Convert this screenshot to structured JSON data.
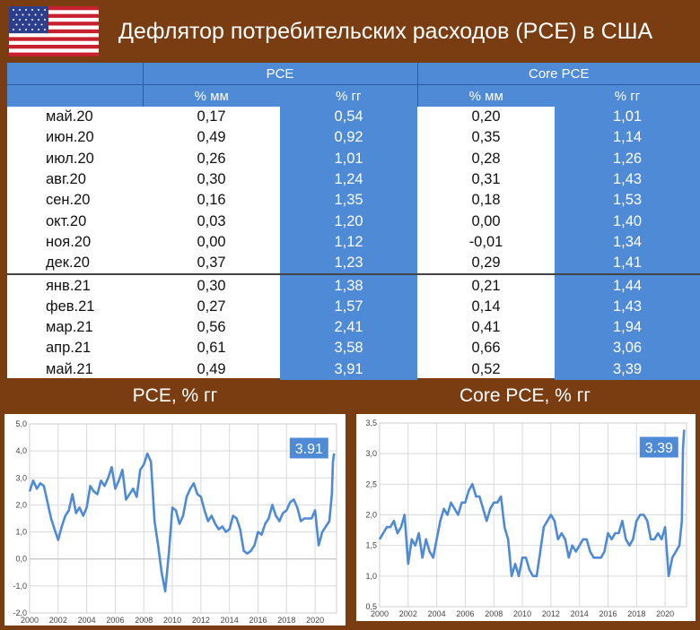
{
  "page": {
    "title": "Дефлятор потребительских расходов (PCE) в США",
    "flag_icon": "us-flag-icon"
  },
  "table": {
    "group_headers": [
      "PCE",
      "Core PCE"
    ],
    "sub_headers": [
      "% мм",
      "% гг",
      "% мм",
      "% гг"
    ],
    "rows": [
      {
        "date": "май.20",
        "pce_mm": "0,17",
        "pce_yy": "0,54",
        "core_mm": "0,20",
        "core_yy": "1,01"
      },
      {
        "date": "июн.20",
        "pce_mm": "0,49",
        "pce_yy": "0,92",
        "core_mm": "0,35",
        "core_yy": "1,14"
      },
      {
        "date": "июл.20",
        "pce_mm": "0,26",
        "pce_yy": "1,01",
        "core_mm": "0,28",
        "core_yy": "1,26"
      },
      {
        "date": "авг.20",
        "pce_mm": "0,30",
        "pce_yy": "1,24",
        "core_mm": "0,31",
        "core_yy": "1,43"
      },
      {
        "date": "сен.20",
        "pce_mm": "0,16",
        "pce_yy": "1,35",
        "core_mm": "0,18",
        "core_yy": "1,53"
      },
      {
        "date": "окт.20",
        "pce_mm": "0,03",
        "pce_yy": "1,20",
        "core_mm": "0,00",
        "core_yy": "1,40"
      },
      {
        "date": "ноя.20",
        "pce_mm": "0,00",
        "pce_yy": "1,12",
        "core_mm": "-0,01",
        "core_yy": "1,34"
      },
      {
        "date": "дек.20",
        "pce_mm": "0,37",
        "pce_yy": "1,23",
        "core_mm": "0,29",
        "core_yy": "1,41"
      },
      {
        "date": "янв.21",
        "pce_mm": "0,30",
        "pce_yy": "1,38",
        "core_mm": "0,21",
        "core_yy": "1,44"
      },
      {
        "date": "фев.21",
        "pce_mm": "0,27",
        "pce_yy": "1,57",
        "core_mm": "0,14",
        "core_yy": "1,43"
      },
      {
        "date": "мар.21",
        "pce_mm": "0,56",
        "pce_yy": "2,41",
        "core_mm": "0,41",
        "core_yy": "1,94"
      },
      {
        "date": "апр.21",
        "pce_mm": "0,61",
        "pce_yy": "3,58",
        "core_mm": "0,66",
        "core_yy": "3,06"
      },
      {
        "date": "май.21",
        "pce_mm": "0,49",
        "pce_yy": "3,91",
        "core_mm": "0,52",
        "core_yy": "3,39"
      }
    ]
  },
  "colors": {
    "background": "#7a3d12",
    "accent": "#4f8ad7",
    "line": "#4f8ad7"
  },
  "chart_data": [
    {
      "type": "line",
      "title": "PCE, % гг",
      "ylim": [
        -2.0,
        5.0
      ],
      "xlim": [
        2000,
        2021.5
      ],
      "yticks": [
        "-2,0",
        "-1,0",
        "0,0",
        "1,0",
        "2,0",
        "3,0",
        "4,0",
        "5,0"
      ],
      "xticks": [
        "2000",
        "2002",
        "2004",
        "2006",
        "2008",
        "2010",
        "2012",
        "2014",
        "2016",
        "2018",
        "2020"
      ],
      "grid": true,
      "annotation": "3.91",
      "series": [
        {
          "x": [
            2000.0,
            2000.25,
            2000.5,
            2000.75,
            2001.0,
            2001.25,
            2001.5,
            2001.75,
            2002.0,
            2002.25,
            2002.5,
            2002.75,
            2003.0,
            2003.25,
            2003.5,
            2003.75,
            2004.0,
            2004.25,
            2004.5,
            2004.75,
            2005.0,
            2005.25,
            2005.5,
            2005.75,
            2006.0,
            2006.25,
            2006.5,
            2006.75,
            2007.0,
            2007.25,
            2007.5,
            2007.75,
            2008.0,
            2008.25,
            2008.5,
            2008.75,
            2009.0,
            2009.25,
            2009.5,
            2009.75,
            2010.0,
            2010.25,
            2010.5,
            2010.75,
            2011.0,
            2011.25,
            2011.5,
            2011.75,
            2012.0,
            2012.25,
            2012.5,
            2012.75,
            2013.0,
            2013.25,
            2013.5,
            2013.75,
            2014.0,
            2014.25,
            2014.5,
            2014.75,
            2015.0,
            2015.25,
            2015.5,
            2015.75,
            2016.0,
            2016.25,
            2016.5,
            2016.75,
            2017.0,
            2017.25,
            2017.5,
            2017.75,
            2018.0,
            2018.25,
            2018.5,
            2018.75,
            2019.0,
            2019.25,
            2019.5,
            2019.75,
            2020.0,
            2020.25,
            2020.5,
            2020.75,
            2021.0,
            2021.17,
            2021.25,
            2021.33
          ],
          "values": [
            2.5,
            2.9,
            2.6,
            2.8,
            2.7,
            2.1,
            1.5,
            1.1,
            0.7,
            1.2,
            1.6,
            1.8,
            2.4,
            1.7,
            1.9,
            1.6,
            1.9,
            2.7,
            2.5,
            2.4,
            2.9,
            2.7,
            3.0,
            3.4,
            2.6,
            2.9,
            3.3,
            2.2,
            2.4,
            2.6,
            2.3,
            3.3,
            3.5,
            3.9,
            3.6,
            1.4,
            0.5,
            -0.5,
            -1.2,
            0.2,
            1.9,
            1.8,
            1.3,
            1.6,
            2.3,
            2.6,
            2.8,
            2.4,
            2.3,
            1.8,
            1.4,
            1.6,
            1.3,
            1.1,
            1.2,
            1.0,
            1.1,
            1.6,
            1.5,
            1.1,
            0.3,
            0.2,
            0.3,
            0.5,
            1.0,
            0.9,
            1.3,
            1.5,
            2.0,
            1.6,
            1.4,
            1.7,
            1.8,
            2.1,
            2.2,
            1.9,
            1.4,
            1.5,
            1.5,
            1.5,
            1.8,
            0.5,
            1.0,
            1.2,
            1.4,
            2.4,
            3.6,
            3.91
          ]
        }
      ]
    },
    {
      "type": "line",
      "title": "Core PCE, % гг",
      "ylim": [
        0.5,
        3.5
      ],
      "xlim": [
        2000,
        2021.5
      ],
      "yticks": [
        "0,5",
        "1,0",
        "1,5",
        "2,0",
        "2,5",
        "3,0",
        "3,5"
      ],
      "xticks": [
        "2000",
        "2002",
        "2004",
        "2006",
        "2008",
        "2010",
        "2012",
        "2014",
        "2016",
        "2018",
        "2020"
      ],
      "grid": true,
      "annotation": "3.39",
      "series": [
        {
          "x": [
            2000.0,
            2000.25,
            2000.5,
            2000.75,
            2001.0,
            2001.25,
            2001.5,
            2001.75,
            2002.0,
            2002.25,
            2002.5,
            2002.75,
            2003.0,
            2003.25,
            2003.5,
            2003.75,
            2004.0,
            2004.25,
            2004.5,
            2004.75,
            2005.0,
            2005.25,
            2005.5,
            2005.75,
            2006.0,
            2006.25,
            2006.5,
            2006.75,
            2007.0,
            2007.25,
            2007.5,
            2007.75,
            2008.0,
            2008.25,
            2008.5,
            2008.75,
            2009.0,
            2009.25,
            2009.5,
            2009.75,
            2010.0,
            2010.25,
            2010.5,
            2010.75,
            2011.0,
            2011.25,
            2011.5,
            2011.75,
            2012.0,
            2012.25,
            2012.5,
            2012.75,
            2013.0,
            2013.25,
            2013.5,
            2013.75,
            2014.0,
            2014.25,
            2014.5,
            2014.75,
            2015.0,
            2015.25,
            2015.5,
            2015.75,
            2016.0,
            2016.25,
            2016.5,
            2016.75,
            2017.0,
            2017.25,
            2017.5,
            2017.75,
            2018.0,
            2018.25,
            2018.5,
            2018.75,
            2019.0,
            2019.25,
            2019.5,
            2019.75,
            2020.0,
            2020.25,
            2020.5,
            2020.75,
            2021.0,
            2021.17,
            2021.25,
            2021.33
          ],
          "values": [
            1.6,
            1.7,
            1.8,
            1.8,
            1.9,
            1.7,
            1.8,
            2.0,
            1.2,
            1.6,
            1.5,
            1.7,
            1.3,
            1.6,
            1.4,
            1.3,
            1.6,
            1.9,
            2.1,
            2.0,
            2.2,
            2.1,
            2.0,
            2.2,
            2.2,
            2.4,
            2.5,
            2.3,
            2.3,
            2.1,
            1.9,
            2.1,
            2.2,
            2.2,
            2.3,
            1.8,
            1.6,
            1.0,
            1.2,
            1.0,
            1.3,
            1.3,
            1.1,
            1.0,
            1.0,
            1.4,
            1.8,
            1.9,
            2.0,
            1.9,
            1.6,
            1.7,
            1.6,
            1.3,
            1.5,
            1.4,
            1.5,
            1.6,
            1.6,
            1.4,
            1.3,
            1.3,
            1.3,
            1.4,
            1.7,
            1.6,
            1.7,
            1.7,
            1.9,
            1.6,
            1.5,
            1.6,
            1.9,
            2.0,
            2.0,
            1.9,
            1.6,
            1.6,
            1.7,
            1.6,
            1.8,
            1.0,
            1.3,
            1.4,
            1.5,
            1.9,
            3.06,
            3.39
          ]
        }
      ]
    }
  ]
}
